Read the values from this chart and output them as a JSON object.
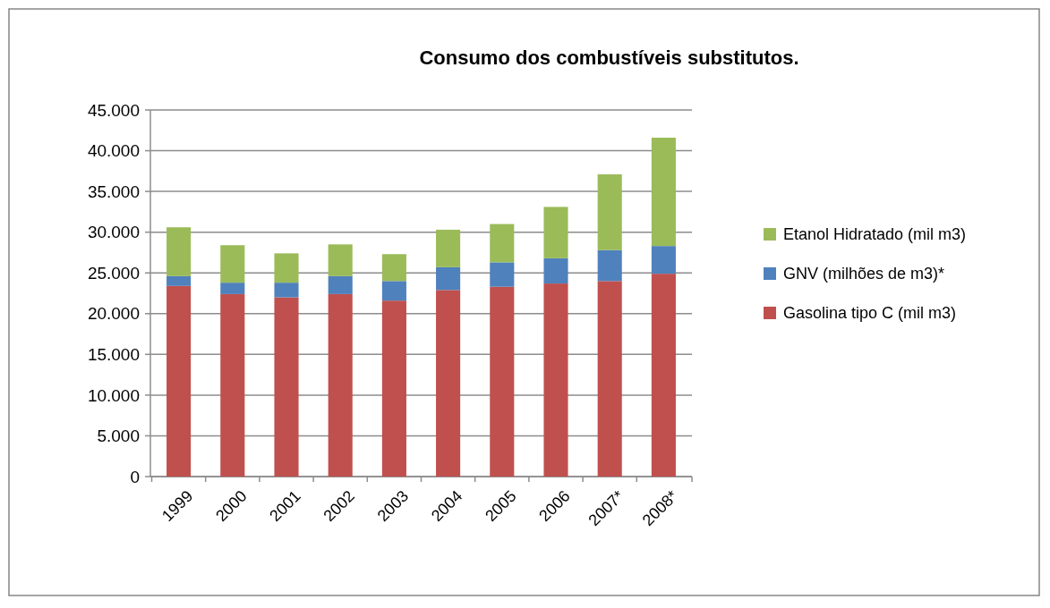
{
  "chart_data": {
    "type": "bar",
    "title": "Consumo dos combustíveis substitutos.",
    "stacked": true,
    "categories": [
      "1999",
      "2000",
      "2001",
      "2002",
      "2003",
      "2004",
      "2005",
      "2006",
      "2007*",
      "2008*"
    ],
    "series": [
      {
        "name": "Gasolina tipo C (mil m3)",
        "color": "#c0504d",
        "values": [
          23400,
          22400,
          22000,
          22400,
          21600,
          22900,
          23300,
          23700,
          24000,
          24900
        ]
      },
      {
        "name": "GNV (milhões de m3)*",
        "color": "#4f81bd",
        "values": [
          1200,
          1400,
          1800,
          2200,
          2400,
          2800,
          3000,
          3100,
          3800,
          3400
        ]
      },
      {
        "name": "Etanol Hidratado (mil m3)",
        "color": "#9bbb59",
        "values": [
          6000,
          4600,
          3600,
          3900,
          3300,
          4600,
          4700,
          6300,
          9300,
          13300
        ]
      }
    ],
    "ylim": [
      0,
      45000
    ],
    "yticks": [
      0,
      {
        "value": 5000,
        "label": "5.000"
      },
      {
        "value": 10000,
        "label": "10.000"
      },
      {
        "value": 15000,
        "label": "15.000"
      },
      {
        "value": 20000,
        "label": "20.000"
      },
      {
        "value": 25000,
        "label": "25.000"
      },
      {
        "value": 30000,
        "label": "30.000"
      },
      {
        "value": 35000,
        "label": "35.000"
      },
      {
        "value": 40000,
        "label": "40.000"
      },
      {
        "value": 45000,
        "label": "45.000"
      }
    ],
    "grid": "y",
    "legend": "right"
  }
}
